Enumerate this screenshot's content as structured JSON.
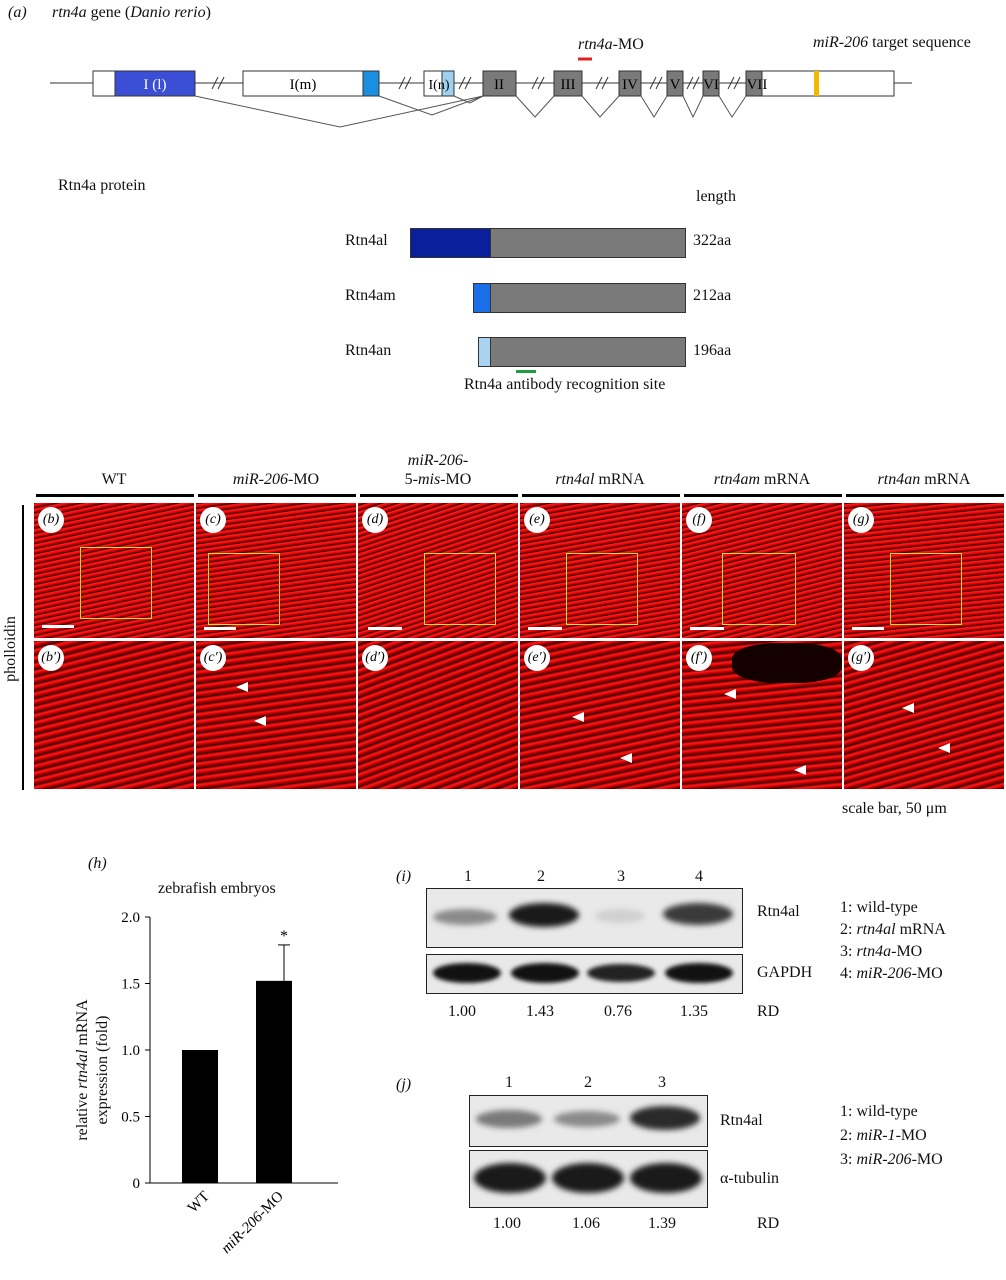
{
  "panel_a": {
    "label": "(a)",
    "gene_title_pre": "rtn4a",
    "gene_title_mid": " gene (",
    "gene_title_species": "Danio rerio",
    "gene_title_post": ")",
    "mo_label_it": "rtn4a",
    "mo_label_rest": "-MO",
    "mir_label_it": "miR-206",
    "mir_label_rest": " target sequence",
    "exons": [
      "I (l)",
      "I(m)",
      "I(n)",
      "II",
      "III",
      "IV",
      "V",
      "VI",
      "VII"
    ],
    "colors": {
      "exon_l": "#3b4fd6",
      "exon_m": "#1a8fe0",
      "exon_n": "#9fd0ef",
      "core": "#7a7a7a",
      "mo_bar": "#e02020",
      "mir_site": "#f5b800",
      "antibody": "#1aa040"
    },
    "protein_title": "Rtn4a protein",
    "length_header": "length",
    "proteins": [
      {
        "name": "Rtn4al",
        "length": "322aa"
      },
      {
        "name": "Rtn4am",
        "length": "212aa"
      },
      {
        "name": "Rtn4an",
        "length": "196aa"
      }
    ],
    "antibody_label": "Rtn4a antibody recognition site"
  },
  "panel_micro": {
    "columns": [
      {
        "it": "",
        "rest": "WT"
      },
      {
        "it": "miR-206",
        "rest": "-MO"
      },
      {
        "it": "miR-206-",
        "rest": "",
        "line2_pre": "5-",
        "line2_it": "mis",
        "line2_post": "-MO"
      },
      {
        "it": "rtn4al",
        "rest": " mRNA"
      },
      {
        "it": "rtn4am",
        "rest": " mRNA"
      },
      {
        "it": "rtn4an",
        "rest": " mRNA"
      }
    ],
    "row_label": "pholloidin",
    "top_labels": [
      "(b)",
      "(c)",
      "(d)",
      "(e)",
      "(f)",
      "(g)"
    ],
    "bottom_labels": [
      "(b′)",
      "(c′)",
      "(d′)",
      "(e′)",
      "(f′)",
      "(g′)"
    ],
    "scale_text": "scale bar, 50 μm"
  },
  "panel_h": {
    "label": "(h)",
    "title": "zebrafish embryos",
    "ylabel_pre": "relative ",
    "ylabel_it": "rtn4al",
    "ylabel_post": " mRNA",
    "ylabel_line2": "expression (fold)",
    "significance": "*",
    "tick_labels": [
      "0",
      "0.5",
      "1.0",
      "1.5",
      "2.0"
    ],
    "x_labels": [
      {
        "it": "",
        "rest": "WT"
      },
      {
        "it": "miR-206",
        "rest": "-MO"
      }
    ]
  },
  "chart_data": {
    "type": "bar",
    "title": "zebrafish embryos",
    "categories": [
      "WT",
      "miR-206-MO"
    ],
    "values": [
      1.0,
      1.52
    ],
    "errors": [
      0,
      0.27
    ],
    "ylabel": "relative rtn4al mRNA expression (fold)",
    "ylim": [
      0,
      2.0
    ],
    "yticks": [
      0,
      0.5,
      1.0,
      1.5,
      2.0
    ],
    "annotations": [
      {
        "category": "miR-206-MO",
        "text": "*"
      }
    ]
  },
  "panel_i": {
    "label": "(i)",
    "lanes": [
      "1",
      "2",
      "3",
      "4"
    ],
    "row1": "Rtn4al",
    "row2": "GAPDH",
    "rd_values": [
      "1.00",
      "1.43",
      "0.76",
      "1.35"
    ],
    "rd_label": "RD",
    "legend": [
      {
        "num": "1: ",
        "it": "",
        "rest": "wild-type"
      },
      {
        "num": "2: ",
        "it": "rtn4al",
        "rest": " mRNA"
      },
      {
        "num": "3: ",
        "it": "rtn4a",
        "rest": "-MO"
      },
      {
        "num": "4: ",
        "it": "miR-206",
        "rest": "-MO"
      }
    ]
  },
  "panel_j": {
    "label": "(j)",
    "lanes": [
      "1",
      "2",
      "3"
    ],
    "row1": "Rtn4al",
    "row2": "α-tubulin",
    "rd_values": [
      "1.00",
      "1.06",
      "1.39"
    ],
    "rd_label": "RD",
    "legend": [
      {
        "num": "1: ",
        "it": "",
        "rest": "wild-type"
      },
      {
        "num": "2: ",
        "it": "miR-1",
        "rest": "-MO"
      },
      {
        "num": "3: ",
        "it": "miR-206",
        "rest": "-MO"
      }
    ]
  }
}
